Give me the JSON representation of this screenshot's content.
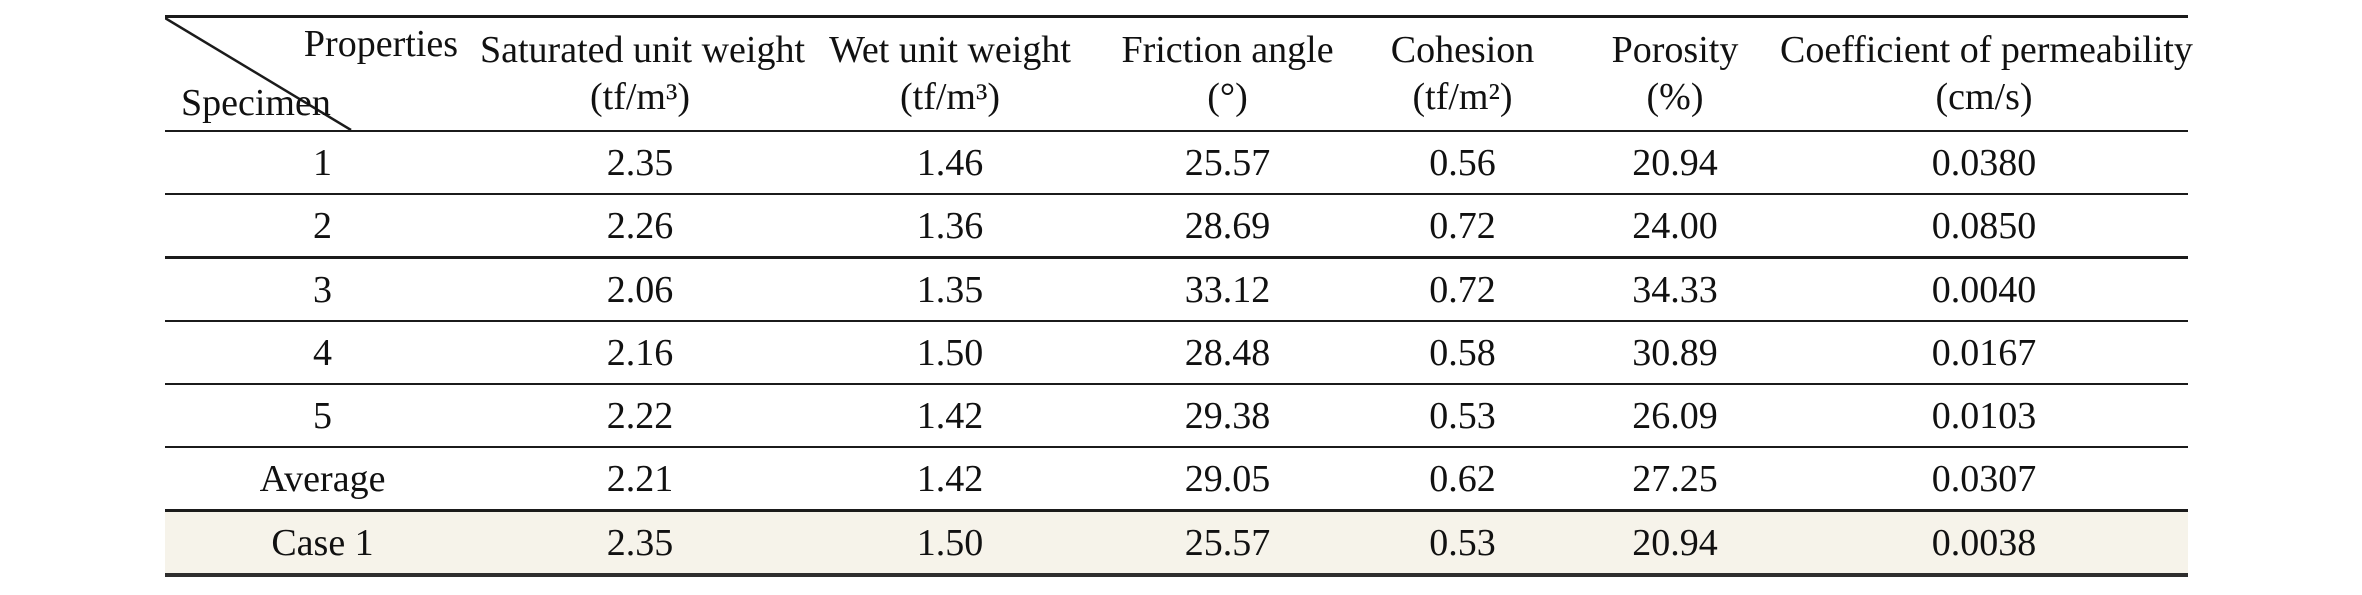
{
  "page": {
    "background_color": "#ffffff",
    "text_color": "#111111",
    "rule_color": "#1b1b1b"
  },
  "table": {
    "corner": {
      "top_label": "Properties",
      "bottom_label": "Specimen"
    },
    "columns": [
      {
        "label": "Saturated unit weight",
        "unit": "(tf/m³)"
      },
      {
        "label": "Wet unit weight",
        "unit": "(tf/m³)"
      },
      {
        "label": "Friction angle",
        "unit": "(°)"
      },
      {
        "label": "Cohesion",
        "unit": "(tf/m²)"
      },
      {
        "label": "Porosity",
        "unit": "(%)"
      },
      {
        "label": "Coefficient of permeability",
        "unit": "(cm/s)"
      }
    ],
    "rows": [
      {
        "label": "1",
        "values": [
          "2.35",
          "1.46",
          "25.57",
          "0.56",
          "20.94",
          "0.0380"
        ],
        "highlight": false
      },
      {
        "label": "2",
        "values": [
          "2.26",
          "1.36",
          "28.69",
          "0.72",
          "24.00",
          "0.0850"
        ],
        "highlight": false
      },
      {
        "label": "3",
        "values": [
          "2.06",
          "1.35",
          "33.12",
          "0.72",
          "34.33",
          "0.0040"
        ],
        "highlight": false
      },
      {
        "label": "4",
        "values": [
          "2.16",
          "1.50",
          "28.48",
          "0.58",
          "30.89",
          "0.0167"
        ],
        "highlight": false
      },
      {
        "label": "5",
        "values": [
          "2.22",
          "1.42",
          "29.38",
          "0.53",
          "26.09",
          "0.0103"
        ],
        "highlight": false
      },
      {
        "label": "Average",
        "values": [
          "2.21",
          "1.42",
          "29.05",
          "0.62",
          "27.25",
          "0.0307"
        ],
        "highlight": false
      },
      {
        "label": "Case 1",
        "values": [
          "2.35",
          "1.50",
          "25.57",
          "0.53",
          "20.94",
          "0.0038"
        ],
        "highlight": true
      }
    ],
    "highlight_color": "#f6f3ea"
  }
}
